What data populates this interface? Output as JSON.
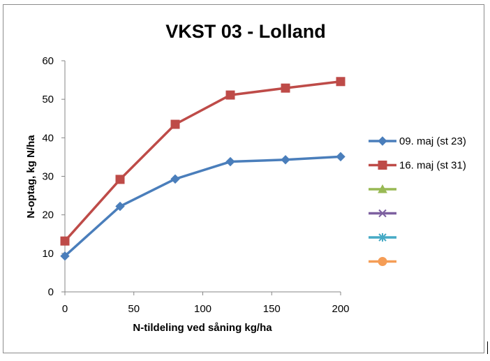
{
  "chart_data": {
    "type": "line",
    "title": "VKST 03 - Lolland",
    "xlabel": "N-tildeling ved såning kg/ha",
    "ylabel": "N-optag, kg N/ha",
    "xlim": [
      0,
      200
    ],
    "ylim": [
      0,
      60
    ],
    "xticks": [
      0,
      50,
      100,
      150,
      200
    ],
    "yticks": [
      0,
      10,
      20,
      30,
      40,
      50,
      60
    ],
    "grid": false,
    "legend_position": "right",
    "series": [
      {
        "name": "09. maj (st 23)",
        "marker": "diamond",
        "color": "#4A7EBB",
        "x": [
          0,
          40,
          80,
          120,
          160,
          200
        ],
        "y": [
          9.3,
          22.2,
          29.3,
          33.8,
          34.3,
          35.1
        ]
      },
      {
        "name": "16. maj (st 31)",
        "marker": "square",
        "color": "#BE4B48",
        "x": [
          0,
          40,
          80,
          120,
          160,
          200
        ],
        "y": [
          13.2,
          29.2,
          43.5,
          51.1,
          52.9,
          54.6
        ]
      },
      {
        "name": "",
        "marker": "triangle",
        "color": "#98B954",
        "x": [],
        "y": []
      },
      {
        "name": "",
        "marker": "x",
        "color": "#7D60A0",
        "x": [],
        "y": []
      },
      {
        "name": "",
        "marker": "star",
        "color": "#46AAC5",
        "x": [],
        "y": []
      },
      {
        "name": "",
        "marker": "circle",
        "color": "#F59D56",
        "x": [],
        "y": []
      }
    ]
  }
}
